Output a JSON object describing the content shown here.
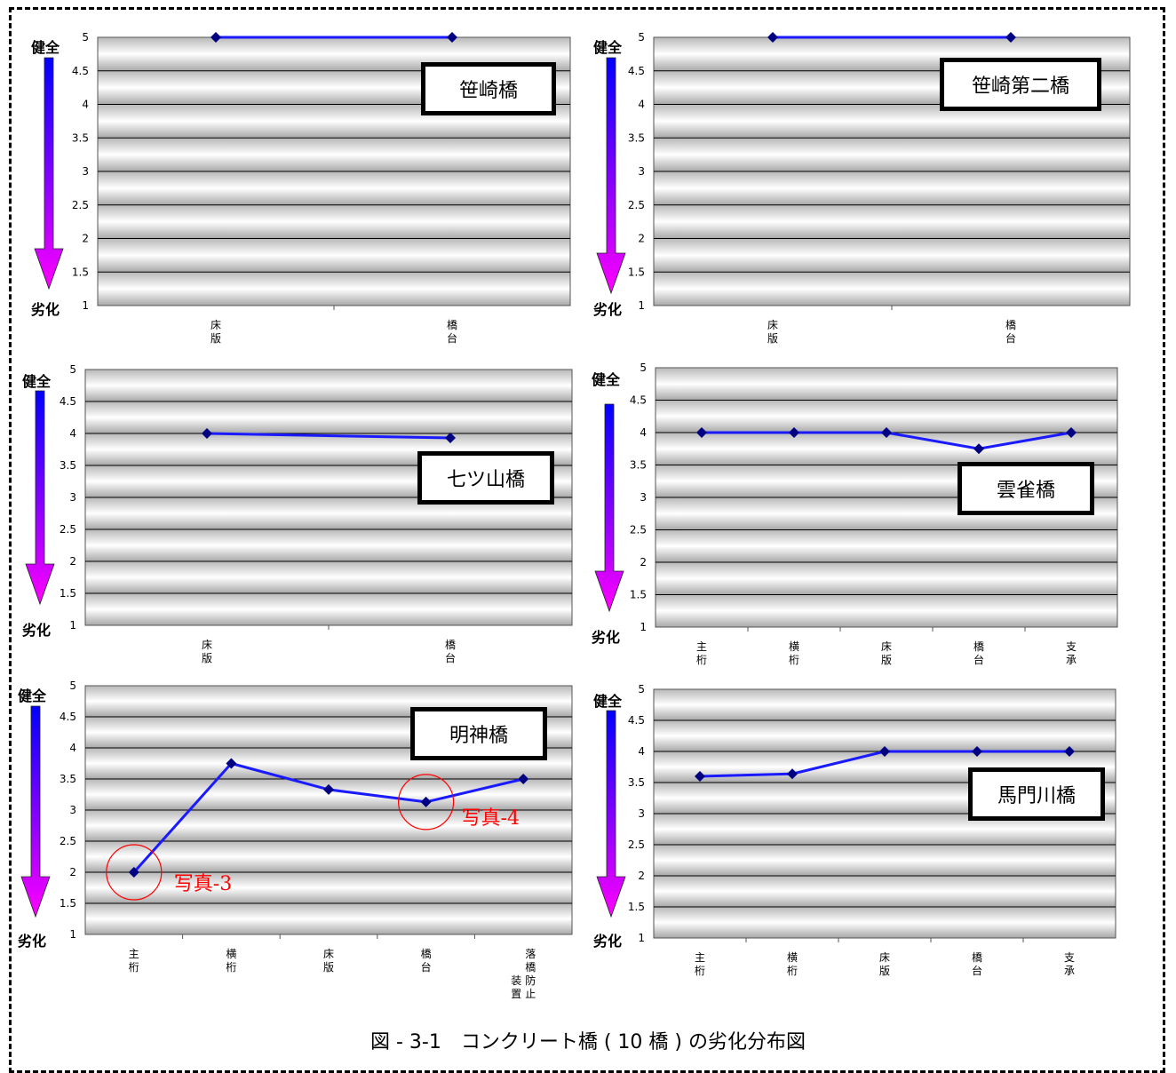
{
  "axis_labels": {
    "healthy": "健全",
    "degraded": "劣化"
  },
  "colors": {
    "line": "#1a1aff",
    "marker": "#000080",
    "arrow_top": "#0000ff",
    "arrow_bottom": "#ff00ff",
    "annotation": "#ff0000"
  },
  "caption": "図 - 3-1　コンクリート橋 ( 10 橋 ) の劣化分布図",
  "chart_data": [
    {
      "type": "line",
      "bridge": "笹崎橋",
      "categories": [
        [
          "床",
          "版"
        ],
        [
          "橋",
          "台"
        ]
      ],
      "values": [
        5,
        5
      ],
      "ylim": [
        1,
        5
      ],
      "yticks": [
        "1",
        "1.5",
        "2",
        "2.5",
        "3",
        "3.5",
        "4",
        "4.5",
        "5"
      ],
      "grid": true
    },
    {
      "type": "line",
      "bridge": "笹崎第二橋",
      "categories": [
        [
          "床",
          "版"
        ],
        [
          "橋",
          "台"
        ]
      ],
      "values": [
        5,
        5
      ],
      "ylim": [
        1,
        5
      ],
      "yticks": [
        "1",
        "1.5",
        "2",
        "2.5",
        "3",
        "3.5",
        "4",
        "4.5",
        "5"
      ],
      "grid": true
    },
    {
      "type": "line",
      "bridge": "七ツ山橋",
      "categories": [
        [
          "床",
          "版"
        ],
        [
          "橋",
          "台"
        ]
      ],
      "values": [
        4,
        3.93
      ],
      "ylim": [
        1,
        5
      ],
      "yticks": [
        "1",
        "1.5",
        "2",
        "2.5",
        "3",
        "3.5",
        "4",
        "4.5",
        "5"
      ],
      "grid": true
    },
    {
      "type": "line",
      "bridge": "雲雀橋",
      "categories": [
        [
          "主",
          "桁"
        ],
        [
          "横",
          "桁"
        ],
        [
          "床",
          "版"
        ],
        [
          "橋",
          "台"
        ],
        [
          "支",
          "承"
        ]
      ],
      "values": [
        4,
        4,
        4,
        3.75,
        4
      ],
      "ylim": [
        1,
        5
      ],
      "yticks": [
        "1",
        "1.5",
        "2",
        "2.5",
        "3",
        "3.5",
        "4",
        "4.5",
        "5"
      ],
      "grid": true
    },
    {
      "type": "line",
      "bridge": "明神橋",
      "categories": [
        [
          "主",
          "桁"
        ],
        [
          "横",
          "桁"
        ],
        [
          "床",
          "版"
        ],
        [
          "橋",
          "台"
        ],
        [
          "落",
          "橋",
          "防",
          "止",
          "装",
          "置"
        ]
      ],
      "values": [
        2,
        3.75,
        3.33,
        3.13,
        3.5
      ],
      "ylim": [
        1,
        5
      ],
      "yticks": [
        "1",
        "1.5",
        "2",
        "2.5",
        "3",
        "3.5",
        "4",
        "4.5",
        "5"
      ],
      "grid": true,
      "annotations": [
        "写真-3",
        "写真-4"
      ]
    },
    {
      "type": "line",
      "bridge": "馬門川橋",
      "categories": [
        [
          "主",
          "桁"
        ],
        [
          "横",
          "桁"
        ],
        [
          "床",
          "版"
        ],
        [
          "橋",
          "台"
        ],
        [
          "支",
          "承"
        ]
      ],
      "values": [
        3.6,
        3.64,
        4,
        4,
        4
      ],
      "ylim": [
        1,
        5
      ],
      "yticks": [
        "1",
        "1.5",
        "2",
        "2.5",
        "3",
        "3.5",
        "4",
        "4.5",
        "5"
      ],
      "grid": true
    }
  ]
}
